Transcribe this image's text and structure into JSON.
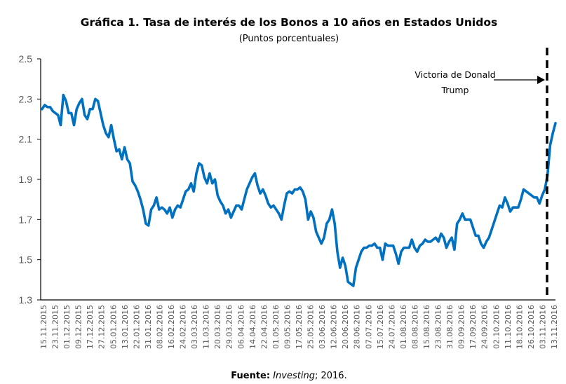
{
  "chart_data": {
    "type": "line",
    "title": "Gráfica 1. Tasa de interés de los Bonos a 10 años en Estados Unidos",
    "subtitle": "(Puntos porcentuales)",
    "xlabel": "",
    "ylabel": "",
    "ylim": [
      1.3,
      2.5
    ],
    "yticks": [
      "1.3",
      "1.5",
      "1.7",
      "1.9",
      "2.1",
      "2.3",
      "2.5"
    ],
    "grid": false,
    "x_tick_labels": [
      "15.11.2015",
      "23.11.2015",
      "01.12.2015",
      "09.12.2015",
      "17.12.2015",
      "27.12.2015",
      "05.01.2016",
      "13.01.2016",
      "22.01.2016",
      "31.01.2016",
      "08.02.2016",
      "16.02.2016",
      "24.02.2016",
      "03.03.2016",
      "11.03.2016",
      "20.03.2016",
      "29.03.2016",
      "06.04.2016",
      "14.04.2016",
      "22.04.2016",
      "01.05.2016",
      "09.05.2016",
      "17.05.2016",
      "25.05.2016",
      "03.06.2016",
      "12.06.2016",
      "20.06.2016",
      "28.06.2016",
      "07.07.2016",
      "15.07.2016",
      "24.07.2016",
      "01.08.2016",
      "08.08.2016",
      "15.08.2016",
      "23.08.2016",
      "31.08.2016",
      "09.09.2016",
      "17.09.2016",
      "24.09.2016",
      "02.10.2016",
      "11.10.2016",
      "18.10.2016",
      "26.10.2016",
      "03.11.2016",
      "13.11.2016"
    ],
    "series": [
      {
        "color": "#0070c0",
        "values": [
          2.25,
          2.27,
          2.26,
          2.26,
          2.24,
          2.23,
          2.22,
          2.17,
          2.32,
          2.29,
          2.23,
          2.23,
          2.17,
          2.25,
          2.28,
          2.3,
          2.22,
          2.2,
          2.25,
          2.25,
          2.3,
          2.29,
          2.23,
          2.17,
          2.13,
          2.11,
          2.17,
          2.1,
          2.04,
          2.05,
          2.0,
          2.06,
          2.0,
          1.98,
          1.89,
          1.87,
          1.84,
          1.8,
          1.75,
          1.68,
          1.67,
          1.75,
          1.77,
          1.81,
          1.75,
          1.76,
          1.75,
          1.73,
          1.76,
          1.71,
          1.75,
          1.77,
          1.76,
          1.8,
          1.84,
          1.85,
          1.88,
          1.84,
          1.93,
          1.98,
          1.97,
          1.91,
          1.88,
          1.93,
          1.88,
          1.9,
          1.82,
          1.79,
          1.77,
          1.73,
          1.75,
          1.71,
          1.74,
          1.77,
          1.77,
          1.75,
          1.8,
          1.85,
          1.88,
          1.91,
          1.93,
          1.87,
          1.83,
          1.85,
          1.82,
          1.78,
          1.76,
          1.77,
          1.75,
          1.73,
          1.7,
          1.77,
          1.83,
          1.84,
          1.83,
          1.85,
          1.85,
          1.86,
          1.84,
          1.8,
          1.7,
          1.74,
          1.71,
          1.64,
          1.61,
          1.58,
          1.61,
          1.68,
          1.7,
          1.75,
          1.68,
          1.54,
          1.46,
          1.51,
          1.47,
          1.39,
          1.38,
          1.37,
          1.46,
          1.5,
          1.54,
          1.56,
          1.56,
          1.57,
          1.57,
          1.58,
          1.56,
          1.56,
          1.5,
          1.58,
          1.57,
          1.57,
          1.57,
          1.53,
          1.48,
          1.54,
          1.56,
          1.56,
          1.56,
          1.6,
          1.56,
          1.54,
          1.57,
          1.58,
          1.6,
          1.59,
          1.59,
          1.6,
          1.61,
          1.59,
          1.63,
          1.61,
          1.56,
          1.59,
          1.61,
          1.55,
          1.68,
          1.7,
          1.73,
          1.7,
          1.7,
          1.7,
          1.66,
          1.62,
          1.62,
          1.58,
          1.56,
          1.59,
          1.61,
          1.65,
          1.69,
          1.73,
          1.77,
          1.76,
          1.81,
          1.78,
          1.74,
          1.76,
          1.76,
          1.76,
          1.8,
          1.85,
          1.84,
          1.83,
          1.82,
          1.81,
          1.81,
          1.78,
          1.82,
          1.85,
          1.92,
          2.07,
          2.13,
          2.18
        ]
      }
    ],
    "annotation": {
      "line1": "Victoria de Donald",
      "line2": "Trump",
      "marker_date": "09.11.2016",
      "marker_style": "dashed vertical line"
    },
    "source": {
      "label": "Fuente:",
      "name": "Investing",
      "rest": "; 2016."
    }
  }
}
